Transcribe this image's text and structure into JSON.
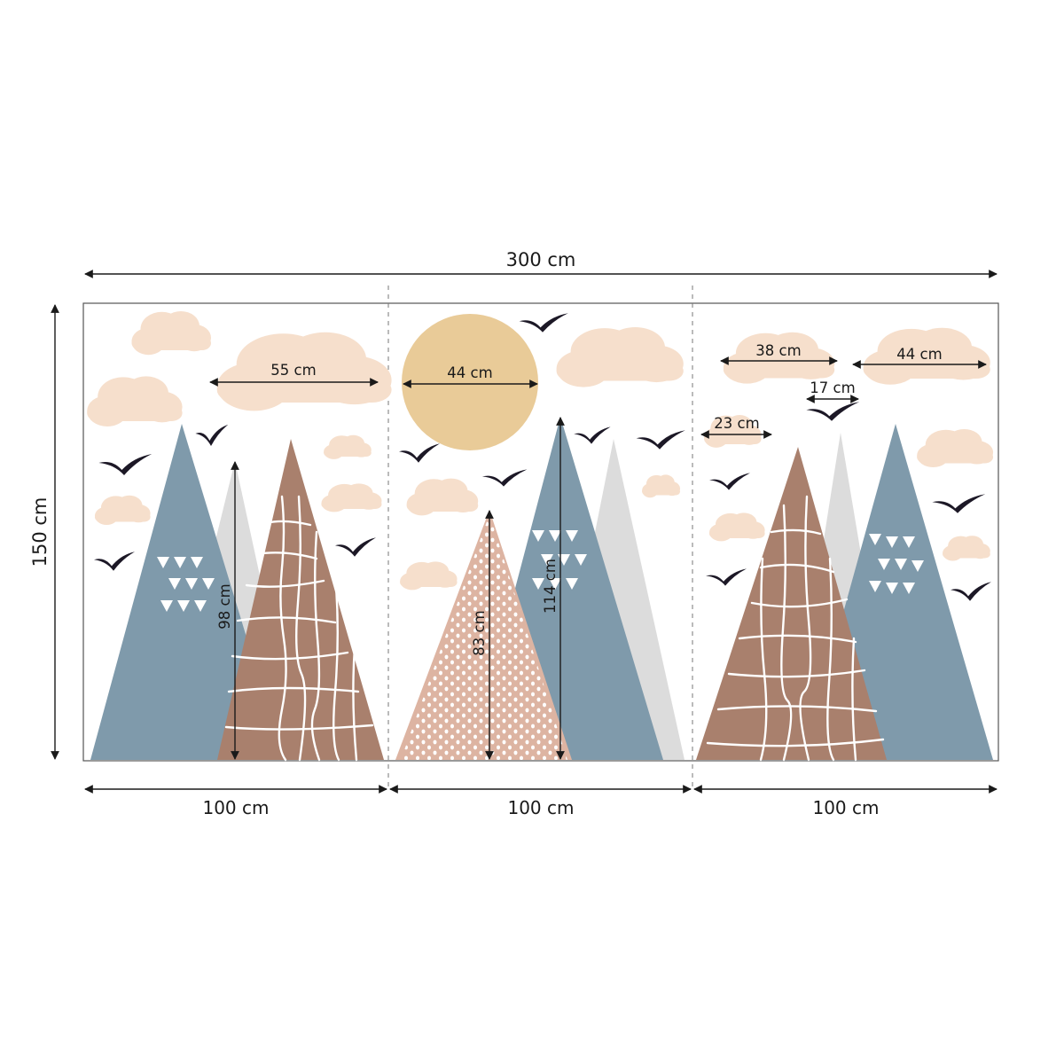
{
  "diagram": {
    "total_width": "300 cm",
    "total_height": "150 cm",
    "panels": [
      "100 cm",
      "100 cm",
      "100 cm"
    ],
    "labels": {
      "cloud_large_left": "55 cm",
      "sun": "44 cm",
      "cloud_38": "38 cm",
      "cloud_44": "44 cm",
      "cloud_17": "17 cm",
      "cloud_23": "23 cm",
      "mountain_98": "98 cm",
      "mountain_83": "83 cm",
      "mountain_114": "114 cm"
    }
  },
  "colors": {
    "mountain_blue": "#7f9aab",
    "mountain_brown": "#a9806d",
    "mountain_pink": "#ddb4a2",
    "mountain_grey": "#dcdcdc",
    "cloud": "#f6dfcc",
    "sun": "#e9cb98",
    "bird": "#1c1826"
  }
}
